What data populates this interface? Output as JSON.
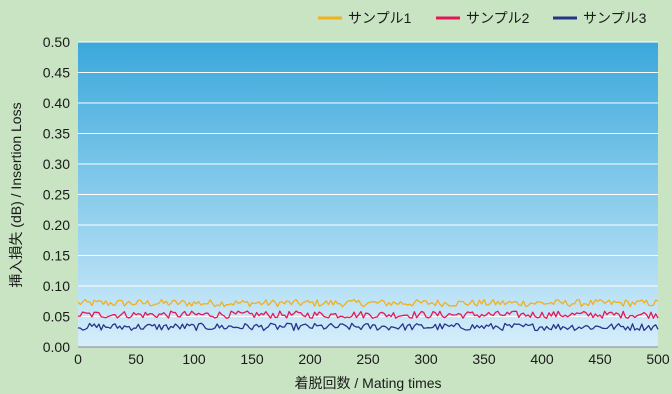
{
  "chart_data": {
    "type": "line",
    "title": "",
    "xlabel": "着脱回数 / Mating times",
    "ylabel": "挿入損失 (dB) / Insertion Loss",
    "xlim": [
      0,
      500
    ],
    "ylim": [
      0,
      0.5
    ],
    "x_ticks": [
      "0",
      "50",
      "100",
      "150",
      "200",
      "250",
      "300",
      "350",
      "400",
      "450",
      "500"
    ],
    "y_ticks": [
      "0.00",
      "0.05",
      "0.10",
      "0.15",
      "0.20",
      "0.25",
      "0.30",
      "0.35",
      "0.40",
      "0.45",
      "0.50"
    ],
    "grid": true,
    "legend_position": "top-right",
    "x_step": 2,
    "series": [
      {
        "name": "サンプル1",
        "color": "#f0b020",
        "mean": 0.072,
        "noise": 0.006
      },
      {
        "name": "サンプル2",
        "color": "#e0185a",
        "mean": 0.053,
        "noise": 0.006
      },
      {
        "name": "サンプル3",
        "color": "#27348b",
        "mean": 0.033,
        "noise": 0.006
      }
    ]
  },
  "colors": {
    "page_bg": "#c8e4c2",
    "plot_top": "#3aa8dc",
    "plot_bottom": "#d6eefb",
    "grid": "#ffffff"
  }
}
